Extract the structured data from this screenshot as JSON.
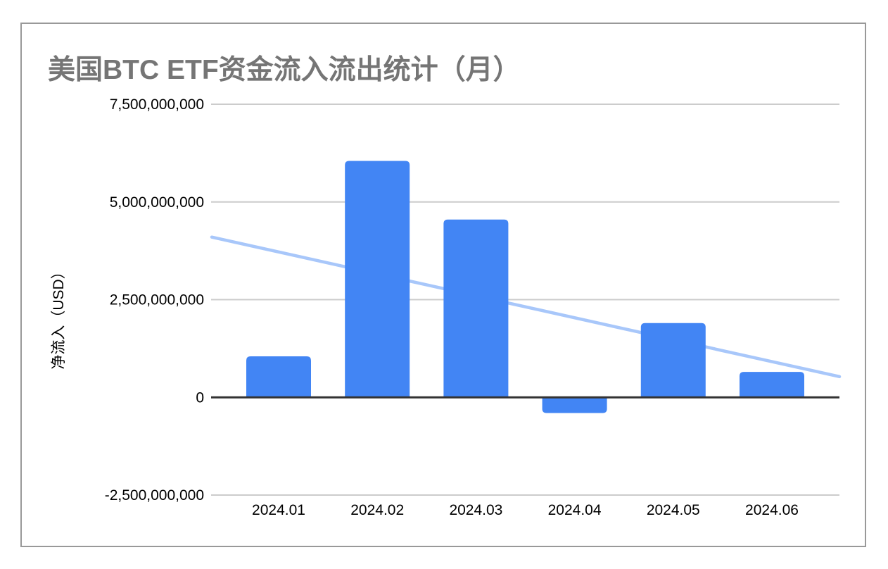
{
  "page": {
    "background": "#ffffff"
  },
  "card": {
    "border_color": "#999999",
    "background": "#ffffff"
  },
  "chart_data": {
    "type": "bar",
    "title": "美国BTC ETF资金流入流出统计（月）",
    "title_color": "#757575",
    "ylabel": "净流入（USD）",
    "xlabel": "",
    "categories": [
      "2024.01",
      "2024.02",
      "2024.03",
      "2024.04",
      "2024.05",
      "2024.06"
    ],
    "series": [
      {
        "name": "bars",
        "type": "bar",
        "color": "#4285f4",
        "values": [
          1050000000,
          6050000000,
          4550000000,
          -400000000,
          1900000000,
          650000000
        ]
      },
      {
        "name": "trendline",
        "type": "trendline",
        "color": "#a8c7fa",
        "start_value": 4100000000,
        "end_value": 530000000
      }
    ],
    "ylim": [
      -2500000000,
      7500000000
    ],
    "yticks": [
      7500000000,
      5000000000,
      2500000000,
      0,
      -2500000000
    ],
    "grid": true,
    "legend": "none",
    "grid_color": "#cccccc",
    "axis_color": "#333333",
    "tick_label_color": "#000000"
  }
}
